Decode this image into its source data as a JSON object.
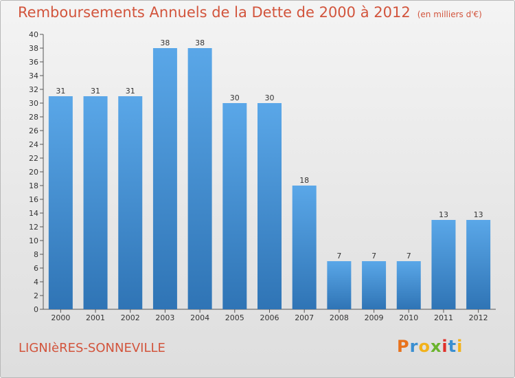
{
  "chart_data": {
    "type": "bar",
    "title": "Remboursements Annuels de la Dette de 2000 à 2012",
    "unit": "(en milliers d'€)",
    "xlabel": "",
    "ylabel": "",
    "categories": [
      "2000",
      "2001",
      "2002",
      "2003",
      "2004",
      "2005",
      "2006",
      "2007",
      "2008",
      "2009",
      "2010",
      "2011",
      "2012"
    ],
    "values": [
      31,
      31,
      31,
      38,
      38,
      30,
      30,
      18,
      7,
      7,
      7,
      13,
      13
    ],
    "ylim": [
      0,
      40
    ],
    "ytick_step": 2,
    "grid": false,
    "bar_color": "#4a90d6"
  },
  "footer": {
    "commune": "LIGNIèRES-SONNEVILLE",
    "brand_letters": [
      "P",
      "r",
      "o",
      "x",
      "i",
      "t",
      "i"
    ],
    "brand_colors": [
      "#e8721c",
      "#3a8fd1",
      "#f2b21b",
      "#6ab42d",
      "#e0312b",
      "#3a8fd1",
      "#f2b21b"
    ]
  }
}
